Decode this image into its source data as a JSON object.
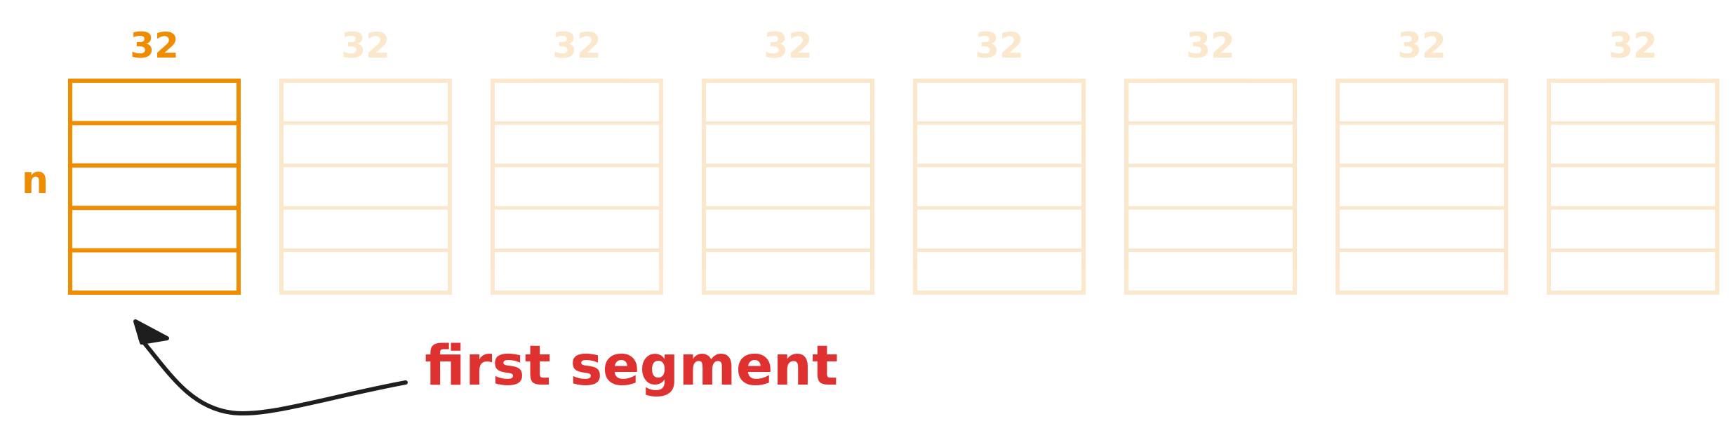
{
  "diagram": {
    "segment_width_label": "32",
    "row_label": "n",
    "annotation": "first segment",
    "segment_count": 8,
    "rows_per_segment": 5,
    "highlighted_segment": 1
  },
  "colors": {
    "active": "#f08c00",
    "inactive": "#f08c00",
    "inactive_opacity": 0.2,
    "annotation_text": "#e03131",
    "arrow": "#1e1e1e",
    "background": "#ffffff"
  }
}
